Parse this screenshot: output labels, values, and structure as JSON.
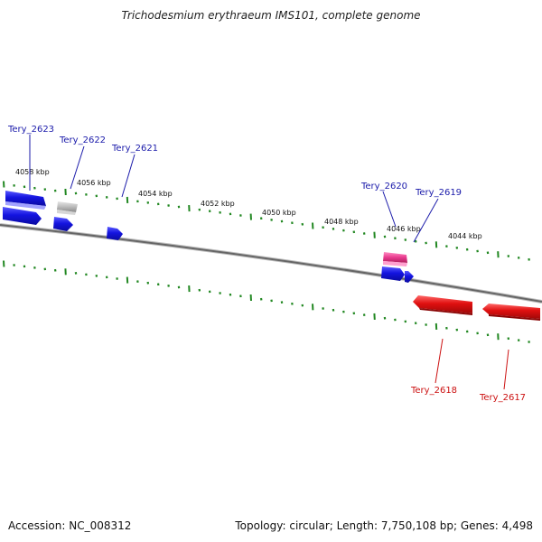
{
  "header": {
    "title": "Trichodesmium erythraeum IMS101, complete genome"
  },
  "footer": {
    "accession": "Accession: NC_008312",
    "summary": "Topology: circular; Length: 7,750,108 bp; Genes: 4,498"
  },
  "colors": {
    "backbone": "#777777",
    "tick": "#228822",
    "forward_gene": "#1414e0",
    "reverse_gene": "#e01010",
    "hypothetical_gene": "#bbbbbb",
    "pseudo_gene": "#e83a8e",
    "forward_label": "#1a1aaa",
    "reverse_label": "#cc1111"
  },
  "scale_labels": [
    "4058 kbp",
    "4056 kbp",
    "4054 kbp",
    "4052 kbp",
    "4050 kbp",
    "4048 kbp",
    "4046 kbp",
    "4044 kbp"
  ],
  "gene_labels": {
    "forward": [
      "Tery_2623",
      "Tery_2622",
      "Tery_2621",
      "Tery_2620",
      "Tery_2619"
    ],
    "reverse": [
      "Tery_2618",
      "Tery_2617"
    ]
  }
}
